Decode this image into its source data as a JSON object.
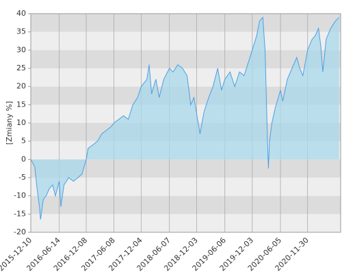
{
  "chart_data": {
    "type": "line",
    "y_label": "[Zmiany %]",
    "x": [
      "2015-12-10",
      "2016-01-05",
      "2016-01-20",
      "2016-02-05",
      "2016-02-12",
      "2016-03-01",
      "2016-03-20",
      "2016-04-10",
      "2016-05-01",
      "2016-05-20",
      "2016-06-14",
      "2016-06-24",
      "2016-07-15",
      "2016-08-15",
      "2016-09-15",
      "2016-10-15",
      "2016-11-10",
      "2016-12-08",
      "2016-12-20",
      "2017-01-20",
      "2017-02-20",
      "2017-03-20",
      "2017-04-20",
      "2017-05-20",
      "2017-06-08",
      "2017-07-10",
      "2017-08-10",
      "2017-09-10",
      "2017-10-10",
      "2017-11-10",
      "2017-12-04",
      "2018-01-10",
      "2018-01-25",
      "2018-02-10",
      "2018-03-10",
      "2018-04-01",
      "2018-05-01",
      "2018-06-07",
      "2018-07-01",
      "2018-08-01",
      "2018-09-01",
      "2018-10-01",
      "2018-10-25",
      "2018-11-15",
      "2018-12-25",
      "2019-01-20",
      "2019-02-20",
      "2019-03-20",
      "2019-04-20",
      "2019-05-15",
      "2019-06-06",
      "2019-07-10",
      "2019-08-10",
      "2019-09-10",
      "2019-10-10",
      "2019-11-10",
      "2019-12-03",
      "2020-01-01",
      "2020-01-20",
      "2020-02-10",
      "2020-02-25",
      "2020-03-12",
      "2020-03-18",
      "2020-03-25",
      "2020-04-10",
      "2020-05-01",
      "2020-06-05",
      "2020-06-20",
      "2020-07-20",
      "2020-08-20",
      "2020-09-20",
      "2020-10-10",
      "2020-10-30",
      "2020-11-30",
      "2020-12-30",
      "2021-01-20",
      "2021-02-10",
      "2021-02-25",
      "2021-03-10",
      "2021-04-01",
      "2021-05-01",
      "2021-06-01",
      "2021-06-25"
    ],
    "values": [
      0,
      -2,
      -8,
      -13,
      -16.5,
      -11,
      -10,
      -8,
      -7,
      -10,
      -6,
      -13,
      -7,
      -5,
      -6,
      -5,
      -4,
      0,
      3,
      4,
      5,
      7,
      8,
      9,
      10,
      11,
      12,
      11,
      15,
      17,
      20,
      22,
      26,
      18,
      22,
      17,
      22,
      25,
      24,
      26,
      25,
      23,
      15,
      17,
      7,
      13,
      17,
      20,
      25,
      19,
      22,
      24,
      20,
      24,
      23,
      27,
      30,
      34,
      38,
      39,
      30,
      5,
      -2.5,
      5,
      10,
      14,
      19,
      16,
      22,
      25,
      28,
      25,
      23,
      30,
      33,
      34,
      36,
      31,
      24,
      33,
      36,
      38,
      39
    ],
    "color": "#4a9fe6",
    "fill": "#a8d8ea",
    "xlim": [
      "2015-12-10",
      "2021-07-05"
    ],
    "xticks": [
      "2015-12-10",
      "2016-06-14",
      "2016-12-08",
      "2017-06-08",
      "2017-12-04",
      "2018-06-07",
      "2018-12-03",
      "2019-06-06",
      "2019-12-03",
      "2020-06-05",
      "2020-11-30"
    ],
    "ylim": [
      -20,
      40
    ],
    "yticks": [
      -20,
      -15,
      -10,
      -5,
      0,
      5,
      10,
      15,
      20,
      25,
      30,
      35,
      40
    ],
    "grid": true
  }
}
